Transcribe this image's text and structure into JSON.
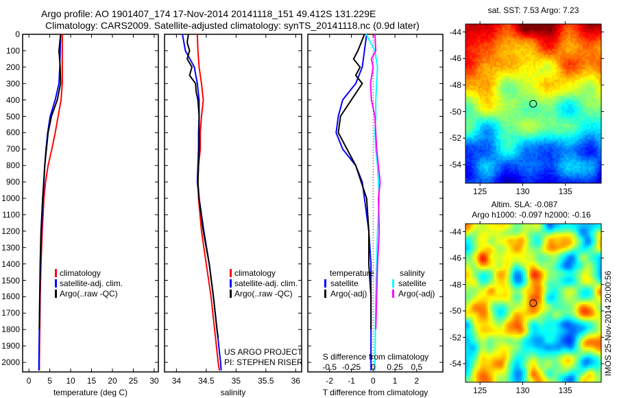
{
  "title_line1": "Argo profile: AO 1901407_174 17-Nov-2014 20141118_151 49.412S 131.229E",
  "title_line2": "Climatology: CARS2009. Satellite-adjusted climatology: synTS_20141118.nc (0.9d later)",
  "credit_line1": "US ARGO PROJECT",
  "credit_line2": "PI: STEPHEN RISER",
  "timestamp": "IMOS 25-Nov-2014 20:00:56",
  "colors": {
    "climatology": "#ff0000",
    "satellite": "#0000ff",
    "argo": "#000000",
    "sal_satellite": "#00ffff",
    "sal_argo": "#ff00ff"
  },
  "chart_data": [
    {
      "type": "line",
      "title": "",
      "xlabel": "temperature (deg C)",
      "ylabel": "",
      "xlim": [
        -1.5,
        31
      ],
      "ylim": [
        2060,
        0
      ],
      "xticks": [
        "0",
        "5",
        "10",
        "15",
        "20",
        "25",
        "30"
      ],
      "yticks": [
        "0",
        "100",
        "200",
        "300",
        "400",
        "500",
        "600",
        "700",
        "800",
        "900",
        "1000",
        "1100",
        "1200",
        "1300",
        "1400",
        "1500",
        "1600",
        "1700",
        "1800",
        "1900",
        "2000"
      ],
      "legend": [
        "climatology",
        "satellite-adj. clim.",
        "Argo(..raw -QC)"
      ],
      "series": [
        {
          "name": "climatology",
          "color": "#ff0000",
          "points": [
            [
              0,
              8
            ],
            [
              100,
              8
            ],
            [
              200,
              8
            ],
            [
              300,
              8
            ],
            [
              400,
              7.7
            ],
            [
              500,
              7
            ],
            [
              600,
              6.3
            ],
            [
              700,
              5.5
            ],
            [
              800,
              4.6
            ],
            [
              900,
              4
            ],
            [
              1000,
              3.6
            ],
            [
              1200,
              3.2
            ],
            [
              1400,
              2.9
            ],
            [
              1600,
              2.7
            ],
            [
              1800,
              2.6
            ],
            [
              2000,
              2.5
            ],
            [
              2050,
              2.5
            ]
          ]
        },
        {
          "name": "satellite-adj. clim.",
          "color": "#0000ff",
          "points": [
            [
              0,
              7.6
            ],
            [
              200,
              7.4
            ],
            [
              300,
              7.2
            ],
            [
              400,
              6.3
            ],
            [
              500,
              5.1
            ],
            [
              600,
              4.5
            ],
            [
              700,
              4.1
            ],
            [
              800,
              3.8
            ],
            [
              900,
              3.6
            ],
            [
              1000,
              3.4
            ],
            [
              1200,
              3
            ],
            [
              1400,
              2.8
            ],
            [
              1600,
              2.6
            ],
            [
              2000,
              2.4
            ],
            [
              2050,
              2.4
            ]
          ]
        },
        {
          "name": "Argo(..raw -QC)",
          "color": "#000000",
          "points": [
            [
              0,
              7.6
            ],
            [
              100,
              7.2
            ],
            [
              200,
              7.5
            ],
            [
              300,
              7.6
            ],
            [
              400,
              6.8
            ],
            [
              500,
              5.4
            ],
            [
              600,
              4.6
            ],
            [
              700,
              4.2
            ],
            [
              800,
              3.8
            ],
            [
              1000,
              3.3
            ],
            [
              1200,
              2.9
            ],
            [
              1400,
              2.7
            ],
            [
              1600,
              2.6
            ],
            [
              1800,
              2.5
            ]
          ]
        }
      ]
    },
    {
      "type": "line",
      "xlabel": "salinity",
      "xlim": [
        33.8,
        36.1
      ],
      "ylim": [
        2060,
        0
      ],
      "xticks": [
        "34",
        "34.5",
        "35",
        "35.5",
        "36"
      ],
      "legend": [
        "climatology",
        "satellite-adj. clim.",
        "Argo(..raw -QC)"
      ],
      "series": [
        {
          "name": "climatology",
          "color": "#ff0000",
          "points": [
            [
              0,
              34.35
            ],
            [
              100,
              34.36
            ],
            [
              200,
              34.38
            ],
            [
              300,
              34.42
            ],
            [
              400,
              34.45
            ],
            [
              500,
              34.42
            ],
            [
              600,
              34.4
            ],
            [
              700,
              34.4
            ],
            [
              800,
              34.37
            ],
            [
              900,
              34.36
            ],
            [
              1000,
              34.37
            ],
            [
              1200,
              34.42
            ],
            [
              1400,
              34.5
            ],
            [
              1600,
              34.58
            ],
            [
              1800,
              34.64
            ],
            [
              2000,
              34.7
            ],
            [
              2050,
              34.72
            ]
          ]
        },
        {
          "name": "satellite-adj. clim.",
          "color": "#0000ff",
          "points": [
            [
              0,
              34.1
            ],
            [
              100,
              34.15
            ],
            [
              200,
              34.3
            ],
            [
              300,
              34.35
            ],
            [
              400,
              34.38
            ],
            [
              500,
              34.38
            ],
            [
              600,
              34.37
            ],
            [
              700,
              34.37
            ],
            [
              800,
              34.36
            ],
            [
              900,
              34.35
            ],
            [
              1000,
              34.38
            ],
            [
              1200,
              34.46
            ],
            [
              1400,
              34.55
            ],
            [
              1600,
              34.62
            ],
            [
              1800,
              34.68
            ],
            [
              2000,
              34.74
            ],
            [
              2050,
              34.75
            ]
          ]
        },
        {
          "name": "Argo(..raw -QC)",
          "color": "#000000",
          "points": [
            [
              0,
              34.2
            ],
            [
              50,
              34.18
            ],
            [
              100,
              34.22
            ],
            [
              150,
              34.18
            ],
            [
              200,
              34.26
            ],
            [
              250,
              34.22
            ],
            [
              300,
              34.32
            ],
            [
              350,
              34.33
            ],
            [
              400,
              34.36
            ],
            [
              500,
              34.38
            ],
            [
              700,
              34.38
            ],
            [
              900,
              34.36
            ],
            [
              1000,
              34.38
            ],
            [
              1200,
              34.45
            ],
            [
              1400,
              34.55
            ],
            [
              1600,
              34.62
            ],
            [
              1800,
              34.68
            ],
            [
              1850,
              34.7
            ]
          ]
        }
      ]
    },
    {
      "type": "line",
      "xlabel": "T difference from climatology",
      "x2label": "S difference from climatology",
      "xlim": [
        -3,
        3.2
      ],
      "ylim": [
        2060,
        0
      ],
      "xticks": [
        "-2",
        "-1",
        "0",
        "1",
        "2"
      ],
      "x2ticks": [
        "-0.5",
        "-0.25",
        "0",
        "0.25",
        "0.5"
      ],
      "legend_headers": [
        "temperature",
        "salinity"
      ],
      "legend": [
        "satellite",
        "Argo(-adj)",
        "satellite",
        "Argo(-adj)"
      ],
      "series": [
        {
          "name": "T satellite",
          "color": "#0000ff",
          "axis": "T",
          "points": [
            [
              0,
              -0.3
            ],
            [
              100,
              -0.4
            ],
            [
              200,
              -0.5
            ],
            [
              300,
              -0.8
            ],
            [
              400,
              -1.4
            ],
            [
              500,
              -1.6
            ],
            [
              600,
              -1.7
            ],
            [
              700,
              -1.4
            ],
            [
              800,
              -0.8
            ],
            [
              900,
              -0.5
            ],
            [
              1000,
              -0.4
            ],
            [
              1200,
              -0.2
            ],
            [
              1400,
              -0.1
            ],
            [
              1600,
              -0.1
            ],
            [
              2000,
              -0.1
            ],
            [
              2050,
              -0.1
            ]
          ]
        },
        {
          "name": "T Argo(-adj)",
          "color": "#000000",
          "axis": "T",
          "points": [
            [
              0,
              -0.4
            ],
            [
              100,
              -0.7
            ],
            [
              150,
              -0.9
            ],
            [
              200,
              -0.6
            ],
            [
              250,
              -0.8
            ],
            [
              300,
              -0.5
            ],
            [
              400,
              -1.0
            ],
            [
              500,
              -1.5
            ],
            [
              600,
              -1.6
            ],
            [
              700,
              -1.2
            ],
            [
              800,
              -0.8
            ],
            [
              1000,
              -0.3
            ],
            [
              1200,
              -0.2
            ],
            [
              1400,
              -0.2
            ],
            [
              1600,
              -0.1
            ],
            [
              1800,
              -0.1
            ]
          ]
        },
        {
          "name": "S satellite",
          "color": "#00ffff",
          "axis": "S",
          "points": [
            [
              0,
              -0.08
            ],
            [
              50,
              -0.03
            ],
            [
              100,
              0.02
            ],
            [
              200,
              0.05
            ],
            [
              300,
              0.04
            ],
            [
              400,
              0.03
            ],
            [
              500,
              0.03
            ],
            [
              600,
              0.02
            ],
            [
              700,
              0.03
            ],
            [
              800,
              0.05
            ],
            [
              900,
              0.06
            ],
            [
              1000,
              0.07
            ],
            [
              1200,
              0.05
            ],
            [
              1400,
              0.04
            ],
            [
              1600,
              0.03
            ],
            [
              2000,
              0.02
            ],
            [
              2050,
              0.02
            ]
          ]
        },
        {
          "name": "S Argo(-adj)",
          "color": "#ff00ff",
          "axis": "S",
          "points": [
            [
              0,
              0.02
            ],
            [
              100,
              0.03
            ],
            [
              150,
              -0.02
            ],
            [
              200,
              0
            ],
            [
              300,
              -0.03
            ],
            [
              400,
              -0.02
            ],
            [
              500,
              0.02
            ],
            [
              700,
              0.04
            ],
            [
              900,
              0.08
            ],
            [
              1000,
              0.06
            ],
            [
              1200,
              0.07
            ],
            [
              1400,
              0.05
            ],
            [
              1600,
              0.04
            ],
            [
              1800,
              0.03
            ]
          ]
        }
      ]
    },
    {
      "type": "heatmap",
      "title": "sat. SST: 7.53 Argo: 7.23",
      "lon_range": [
        123.3,
        139.2
      ],
      "lat_range": [
        -55.4,
        -43.4
      ],
      "xticks": [
        "125",
        "130",
        "135"
      ],
      "yticks": [
        "-44",
        "-46",
        "-48",
        "-50",
        "-52",
        "-54"
      ],
      "marker": [
        131.229,
        -49.412
      ]
    },
    {
      "type": "heatmap",
      "title": "Altim. SLA: -0.087",
      "subtitle": "Argo h1000: -0.097 h2000: -0.16",
      "lon_range": [
        123.3,
        139.2
      ],
      "lat_range": [
        -55.4,
        -43.4
      ],
      "xticks": [
        "125",
        "130",
        "135"
      ],
      "yticks": [
        "-44",
        "-46",
        "-48",
        "-50",
        "-52",
        "-54"
      ],
      "marker": [
        131.229,
        -49.412
      ]
    }
  ]
}
